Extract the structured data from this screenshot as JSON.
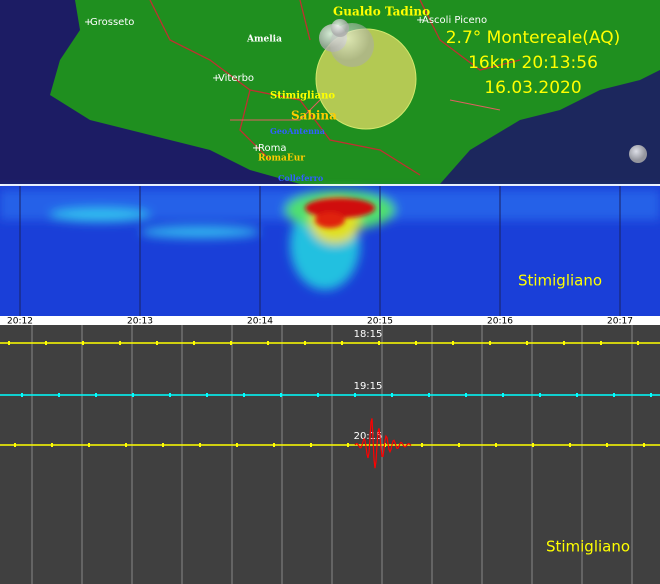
{
  "map": {
    "places": [
      "Grosseto",
      "Gualdo Tadino",
      "Ascoli Piceno",
      "Amelia",
      "Viterbo",
      "Stimigliano",
      "Sabina",
      "GeoAntenna",
      "Roma",
      "RomaEur",
      "Colleferro"
    ],
    "event": {
      "title": "2.7° Montereale(AQ)",
      "detail": "16km 20:13:56",
      "date": "16.03.2020"
    }
  },
  "spectrogram": {
    "station": "Stimigliano",
    "times": [
      "20:12",
      "20:13",
      "20:14",
      "20:15",
      "20:16",
      "20:17"
    ]
  },
  "seismogram": {
    "station": "Stimigliano",
    "hours": [
      "18:15",
      "19:15",
      "20:15"
    ]
  }
}
